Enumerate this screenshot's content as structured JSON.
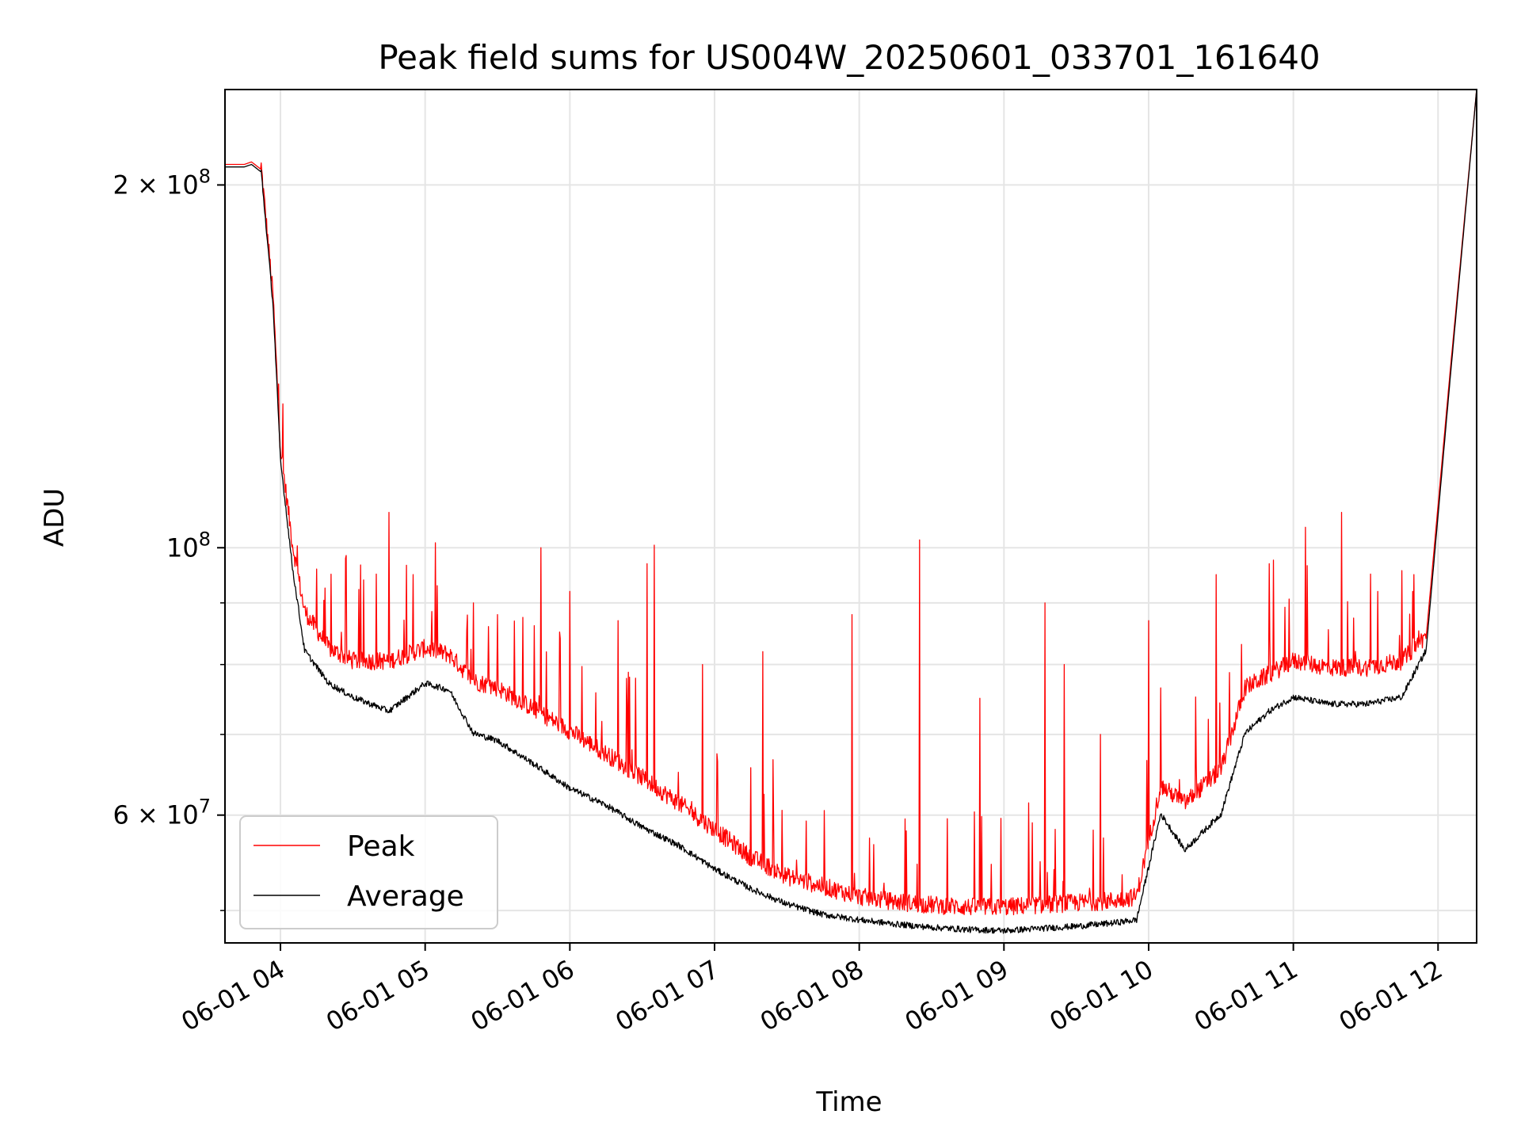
{
  "chart_data": {
    "type": "line",
    "title": "Peak field sums for US004W_20250601_033701_161640",
    "xlabel": "Time",
    "ylabel": "ADU",
    "x_range": [
      "06-01 03:37",
      "06-01 12:16"
    ],
    "ylim": [
      47000000,
      240000000
    ],
    "y_scale": "log",
    "grid": true,
    "legend_position": "lower-left",
    "x_ticks": [
      "06-01 04",
      "06-01 05",
      "06-01 06",
      "06-01 07",
      "06-01 08",
      "06-01 09",
      "06-01 10",
      "06-01 11",
      "06-01 12"
    ],
    "y_ticks": [
      {
        "value": 200000000,
        "mantissa": "2",
        "exp": "8"
      },
      {
        "value": 100000000,
        "mantissa": "",
        "exp": "8"
      },
      {
        "value": 60000000,
        "mantissa": "6",
        "exp": "7"
      }
    ],
    "y_minor_ticks": [
      50000000,
      70000000,
      80000000,
      90000000
    ],
    "series": [
      {
        "name": "Peak",
        "color": "#ff0000",
        "x": [
          "03:37",
          "03:45",
          "03:48",
          "03:52",
          "03:57",
          "04:00",
          "04:05",
          "04:10",
          "04:20",
          "04:30",
          "04:45",
          "05:00",
          "05:10",
          "05:20",
          "05:30",
          "05:45",
          "06:00",
          "06:15",
          "06:30",
          "06:45",
          "07:00",
          "07:15",
          "07:30",
          "07:45",
          "08:00",
          "08:15",
          "08:30",
          "08:45",
          "09:00",
          "09:15",
          "09:30",
          "09:45",
          "09:55",
          "10:05",
          "10:15",
          "10:30",
          "10:40",
          "10:50",
          "11:00",
          "11:15",
          "11:30",
          "11:45",
          "11:55",
          "12:05",
          "12:16"
        ],
        "y": [
          208000000,
          208000000,
          209000000,
          206000000,
          160000000,
          120000000,
          100000000,
          88000000,
          82000000,
          80000000,
          80000000,
          82000000,
          81000000,
          77000000,
          76000000,
          73000000,
          70000000,
          67000000,
          64000000,
          61000000,
          58000000,
          55000000,
          53000000,
          52000000,
          51000000,
          50500000,
          50200000,
          50000000,
          50000000,
          50200000,
          50400000,
          50600000,
          51000000,
          63000000,
          61000000,
          65000000,
          76000000,
          78000000,
          80000000,
          79000000,
          79000000,
          80000000,
          84000000,
          140000000,
          240000000
        ],
        "spikes": [
          {
            "x": "04:15",
            "y": 96000000
          },
          {
            "x": "04:27",
            "y": 98000000
          },
          {
            "x": "04:45",
            "y": 107000000
          },
          {
            "x": "04:55",
            "y": 95000000
          },
          {
            "x": "05:05",
            "y": 93000000
          },
          {
            "x": "05:20",
            "y": 90000000
          },
          {
            "x": "05:30",
            "y": 88000000
          },
          {
            "x": "05:48",
            "y": 100000000
          },
          {
            "x": "06:00",
            "y": 92000000
          },
          {
            "x": "06:20",
            "y": 87000000
          },
          {
            "x": "06:32",
            "y": 97000000
          },
          {
            "x": "06:35",
            "y": 100500000
          },
          {
            "x": "06:55",
            "y": 80000000
          },
          {
            "x": "07:20",
            "y": 82000000
          },
          {
            "x": "07:57",
            "y": 88000000
          },
          {
            "x": "08:25",
            "y": 101500000
          },
          {
            "x": "08:50",
            "y": 75000000
          },
          {
            "x": "09:17",
            "y": 90000000
          },
          {
            "x": "09:25",
            "y": 80000000
          },
          {
            "x": "09:40",
            "y": 70000000
          },
          {
            "x": "10:00",
            "y": 87000000
          },
          {
            "x": "10:28",
            "y": 95000000
          },
          {
            "x": "10:50",
            "y": 97000000
          },
          {
            "x": "11:05",
            "y": 104000000
          },
          {
            "x": "11:20",
            "y": 107000000
          },
          {
            "x": "11:35",
            "y": 92000000
          },
          {
            "x": "11:50",
            "y": 95000000
          }
        ]
      },
      {
        "name": "Average",
        "color": "#000000",
        "x": [
          "03:37",
          "03:45",
          "03:48",
          "03:52",
          "03:57",
          "04:00",
          "04:05",
          "04:10",
          "04:20",
          "04:30",
          "04:45",
          "05:00",
          "05:10",
          "05:20",
          "05:30",
          "05:45",
          "06:00",
          "06:15",
          "06:30",
          "06:45",
          "07:00",
          "07:15",
          "07:30",
          "07:45",
          "08:00",
          "08:15",
          "08:30",
          "08:45",
          "09:00",
          "09:15",
          "09:30",
          "09:45",
          "09:55",
          "10:05",
          "10:15",
          "10:30",
          "10:40",
          "10:50",
          "11:00",
          "11:15",
          "11:30",
          "11:45",
          "11:55",
          "12:05",
          "12:16"
        ],
        "y": [
          207000000,
          207000000,
          208000000,
          205000000,
          158000000,
          118000000,
          96000000,
          82000000,
          77000000,
          75000000,
          73000000,
          77000000,
          76000000,
          70000000,
          69000000,
          66000000,
          63000000,
          61000000,
          58500000,
          56500000,
          54000000,
          52000000,
          50500000,
          49500000,
          49000000,
          48600000,
          48300000,
          48100000,
          48000000,
          48200000,
          48400000,
          48700000,
          49000000,
          60000000,
          56000000,
          60000000,
          70000000,
          73000000,
          75000000,
          74000000,
          74000000,
          75000000,
          82000000,
          138000000,
          240000000
        ]
      }
    ]
  }
}
